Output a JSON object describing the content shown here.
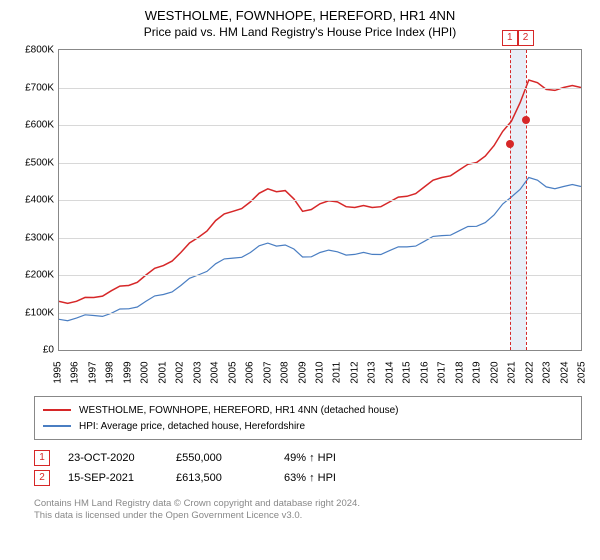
{
  "title": "WESTHOLME, FOWNHOPE, HEREFORD, HR1 4NN",
  "subtitle": "Price paid vs. HM Land Registry's House Price Index (HPI)",
  "chart": {
    "type": "line",
    "ylim": [
      0,
      800000
    ],
    "ytick_step": 100000,
    "ytick_labels": [
      "£0",
      "£100K",
      "£200K",
      "£300K",
      "£400K",
      "£500K",
      "£600K",
      "£700K",
      "£800K"
    ],
    "xlim": [
      1995,
      2025
    ],
    "xtick_labels": [
      "1995",
      "1996",
      "1997",
      "1998",
      "1999",
      "2000",
      "2001",
      "2002",
      "2003",
      "2004",
      "2005",
      "2006",
      "2007",
      "2008",
      "2009",
      "2010",
      "2011",
      "2012",
      "2013",
      "2014",
      "2015",
      "2016",
      "2017",
      "2018",
      "2019",
      "2020",
      "2021",
      "2022",
      "2023",
      "2024",
      "2025"
    ],
    "background_color": "#ffffff",
    "grid_color": "#d8d8d8",
    "border_color": "#888888",
    "series": [
      {
        "name": "red",
        "label": "WESTHOLME, FOWNHOPE, HEREFORD, HR1 4NN (detached house)",
        "color": "#d62728",
        "width": 1.5,
        "data": [
          [
            1995,
            130000
          ],
          [
            1996,
            130000
          ],
          [
            1997,
            140000
          ],
          [
            1998,
            158000
          ],
          [
            1999,
            172000
          ],
          [
            2000,
            200000
          ],
          [
            2001,
            225000
          ],
          [
            2002,
            260000
          ],
          [
            2003,
            300000
          ],
          [
            2004,
            345000
          ],
          [
            2005,
            370000
          ],
          [
            2006,
            395000
          ],
          [
            2007,
            430000
          ],
          [
            2008,
            425000
          ],
          [
            2009,
            370000
          ],
          [
            2010,
            390000
          ],
          [
            2011,
            395000
          ],
          [
            2012,
            380000
          ],
          [
            2013,
            380000
          ],
          [
            2014,
            395000
          ],
          [
            2015,
            410000
          ],
          [
            2016,
            435000
          ],
          [
            2017,
            460000
          ],
          [
            2018,
            480000
          ],
          [
            2019,
            500000
          ],
          [
            2020,
            545000
          ],
          [
            2021,
            610000
          ],
          [
            2022,
            720000
          ],
          [
            2023,
            695000
          ],
          [
            2024,
            700000
          ],
          [
            2025,
            700000
          ]
        ]
      },
      {
        "name": "blue",
        "label": "HPI: Average price, detached house, Herefordshire",
        "color": "#4a7ec2",
        "width": 1.2,
        "data": [
          [
            1995,
            82000
          ],
          [
            1996,
            85000
          ],
          [
            1997,
            92000
          ],
          [
            1998,
            98000
          ],
          [
            1999,
            110000
          ],
          [
            2000,
            130000
          ],
          [
            2001,
            148000
          ],
          [
            2002,
            172000
          ],
          [
            2003,
            200000
          ],
          [
            2004,
            230000
          ],
          [
            2005,
            245000
          ],
          [
            2006,
            260000
          ],
          [
            2007,
            285000
          ],
          [
            2008,
            280000
          ],
          [
            2009,
            248000
          ],
          [
            2010,
            260000
          ],
          [
            2011,
            262000
          ],
          [
            2012,
            255000
          ],
          [
            2013,
            255000
          ],
          [
            2014,
            265000
          ],
          [
            2015,
            275000
          ],
          [
            2016,
            290000
          ],
          [
            2017,
            305000
          ],
          [
            2018,
            318000
          ],
          [
            2019,
            330000
          ],
          [
            2020,
            360000
          ],
          [
            2021,
            408000
          ],
          [
            2022,
            460000
          ],
          [
            2023,
            435000
          ],
          [
            2024,
            436000
          ],
          [
            2025,
            436000
          ]
        ]
      }
    ],
    "markers": [
      {
        "id": "1",
        "year": 2020.81,
        "price": 550000,
        "color": "#d62728"
      },
      {
        "id": "2",
        "year": 2021.71,
        "price": 613500,
        "color": "#d62728"
      }
    ],
    "highlight_band": {
      "from": 2020.81,
      "to": 2021.71,
      "color": "#e8eef7"
    }
  },
  "sales": [
    {
      "id": "1",
      "date": "23-OCT-2020",
      "price": "£550,000",
      "pct": "49% ↑ HPI"
    },
    {
      "id": "2",
      "date": "15-SEP-2021",
      "price": "£613,500",
      "pct": "63% ↑ HPI"
    }
  ],
  "footer_line1": "Contains HM Land Registry data © Crown copyright and database right 2024.",
  "footer_line2": "This data is licensed under the Open Government Licence v3.0.",
  "marker_color": "#d62728"
}
